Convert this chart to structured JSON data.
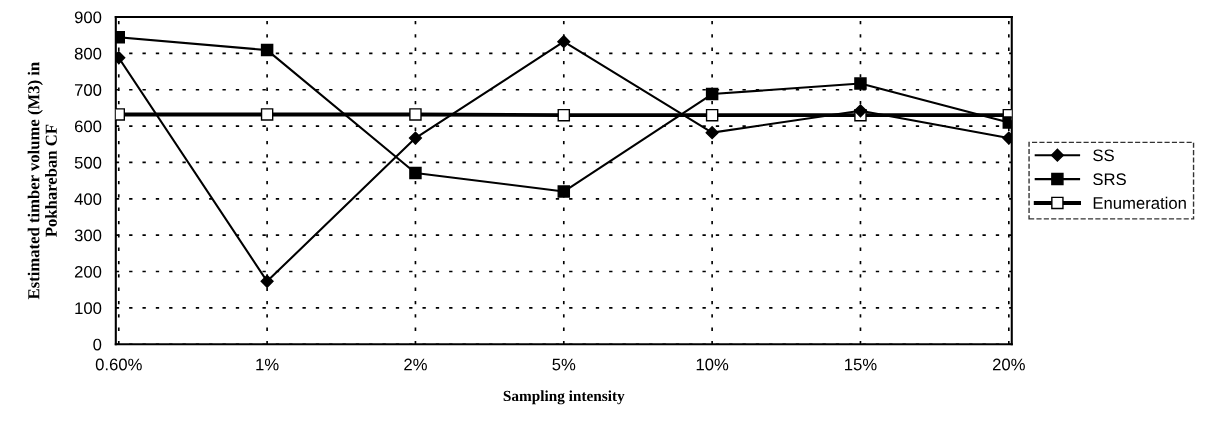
{
  "chart_data": {
    "type": "line",
    "categories": [
      "0.60%",
      "1%",
      "2%",
      "5%",
      "10%",
      "15%",
      "20%"
    ],
    "xlabel": "Sampling intensity",
    "ylabel": "Estimated timber volume (M3) in\nPokhareban CF",
    "ylim": [
      0,
      900
    ],
    "yticks": [
      0,
      100,
      200,
      300,
      400,
      500,
      600,
      700,
      800,
      900
    ],
    "grid": true,
    "legend": "right",
    "series": [
      {
        "name": "SS",
        "color": "#000000",
        "marker": "diamond",
        "values": [
          788,
          173,
          567,
          832,
          582,
          642,
          567
        ]
      },
      {
        "name": "SRS",
        "color": "#000000",
        "marker": "square",
        "values": [
          844,
          809,
          471,
          420,
          688,
          717,
          610
        ]
      },
      {
        "name": "Enumeration",
        "color": "#000000",
        "marker": "square_open",
        "values": [
          632,
          632,
          632,
          630,
          630,
          630,
          630
        ]
      }
    ]
  }
}
